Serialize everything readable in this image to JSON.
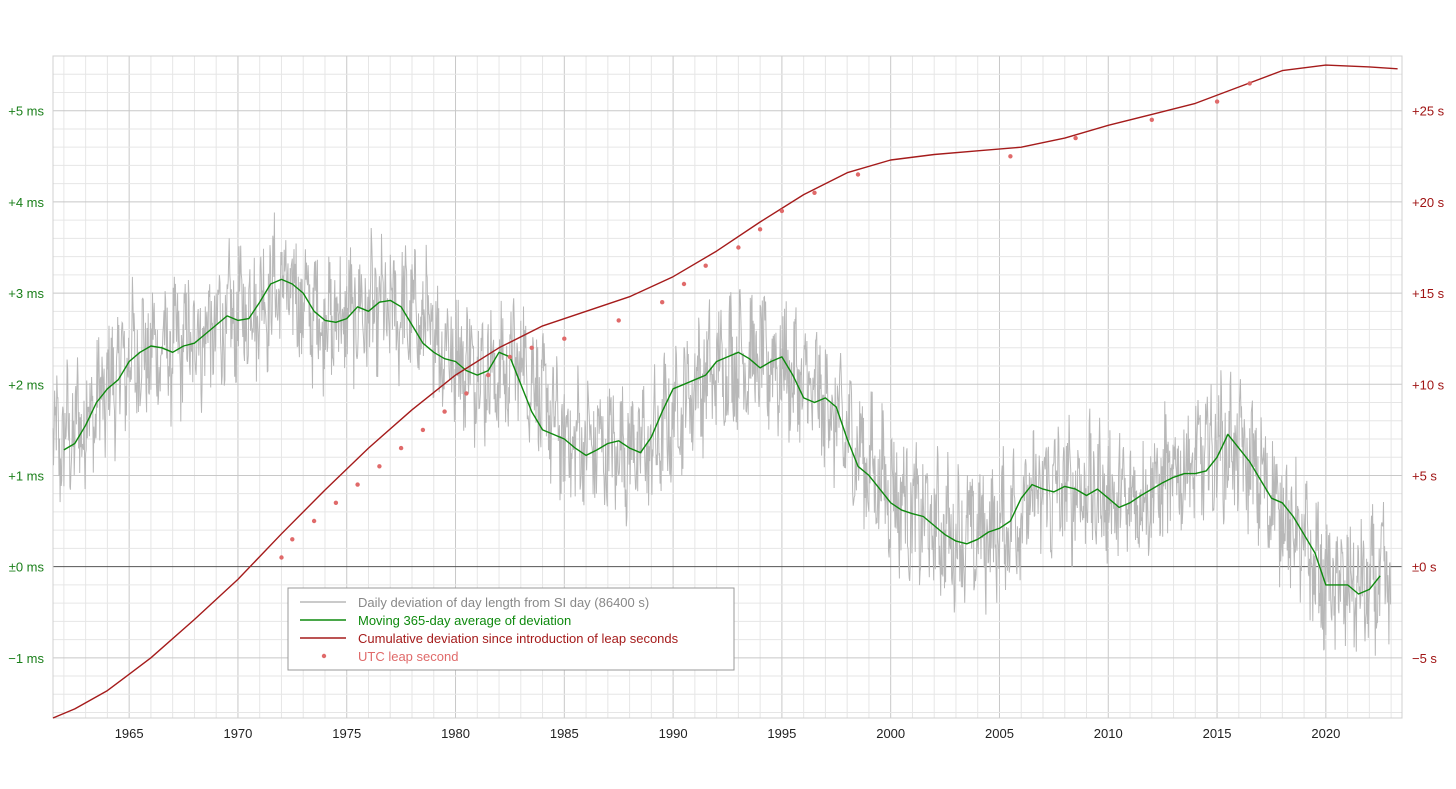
{
  "colors": {
    "daily": "#b8b8b8",
    "average": "#0e8a0e",
    "cumulative": "#a51b1b",
    "leap": "#e06a6a",
    "left_axis": "#1a7f1a",
    "right_axis": "#a01414",
    "grid_major": "#c8c8c8",
    "grid_minor": "#e6e6e6",
    "zero_line": "#555555"
  },
  "chart_data": {
    "type": "line",
    "title": "",
    "xlabel": "",
    "ylabel": "",
    "xlim": [
      1961.5,
      2023.5
    ],
    "ylim_left_ms": [
      -1.66,
      5.6
    ],
    "ylim_right_s": [
      -8.3,
      28
    ],
    "grid": true,
    "legend_position": "lower-left",
    "x_ticks": [
      1965,
      1970,
      1975,
      1980,
      1985,
      1990,
      1995,
      2000,
      2005,
      2010,
      2015,
      2020
    ],
    "x_tick_labels": [
      "1965",
      "1970",
      "1975",
      "1980",
      "1985",
      "1990",
      "1995",
      "2000",
      "2005",
      "2010",
      "2015",
      "2020"
    ],
    "left_ticks": [
      5,
      4,
      3,
      2,
      1,
      0,
      -1
    ],
    "left_tick_labels": [
      "+5 ms",
      "+4 ms",
      "+3 ms",
      "+2 ms",
      "+1 ms",
      "±0 ms",
      "−1 ms"
    ],
    "right_ticks": [
      25,
      20,
      15,
      10,
      5,
      0,
      -5
    ],
    "right_tick_labels": [
      "+25 s",
      "+20 s",
      "+15 s",
      "+10 s",
      "+5 s",
      "±0 s",
      "−5 s"
    ],
    "legend": [
      {
        "key": "daily",
        "label": "Daily deviation of day length from SI day (86400 s)",
        "symbol": "line"
      },
      {
        "key": "average",
        "label": "Moving 365-day average of deviation",
        "symbol": "line"
      },
      {
        "key": "cumulative",
        "label": "Cumulative deviation since introduction of leap seconds",
        "symbol": "line"
      },
      {
        "key": "leap",
        "label": "UTC leap second",
        "symbol": "dot"
      }
    ],
    "series": [
      {
        "name": "Moving 365-day average of deviation",
        "axis": "left",
        "unit": "ms",
        "x": [
          1962.0,
          1962.5,
          1963.0,
          1963.5,
          1964.0,
          1964.5,
          1965.0,
          1965.5,
          1966.0,
          1966.5,
          1967.0,
          1967.5,
          1968.0,
          1968.5,
          1969.0,
          1969.5,
          1970.0,
          1970.5,
          1971.0,
          1971.5,
          1972.0,
          1972.5,
          1973.0,
          1973.5,
          1974.0,
          1974.5,
          1975.0,
          1975.5,
          1976.0,
          1976.5,
          1977.0,
          1977.5,
          1978.0,
          1978.5,
          1979.0,
          1979.5,
          1980.0,
          1980.5,
          1981.0,
          1981.5,
          1982.0,
          1982.5,
          1983.0,
          1983.5,
          1984.0,
          1984.5,
          1985.0,
          1985.5,
          1986.0,
          1986.5,
          1987.0,
          1987.5,
          1988.0,
          1988.5,
          1989.0,
          1989.5,
          1990.0,
          1990.5,
          1991.0,
          1991.5,
          1992.0,
          1992.5,
          1993.0,
          1993.5,
          1994.0,
          1994.5,
          1995.0,
          1995.5,
          1996.0,
          1996.5,
          1997.0,
          1997.5,
          1998.0,
          1998.5,
          1999.0,
          1999.5,
          2000.0,
          2000.5,
          2001.0,
          2001.5,
          2002.0,
          2002.5,
          2003.0,
          2003.5,
          2004.0,
          2004.5,
          2005.0,
          2005.5,
          2006.0,
          2006.5,
          2007.0,
          2007.5,
          2008.0,
          2008.5,
          2009.0,
          2009.5,
          2010.0,
          2010.5,
          2011.0,
          2011.5,
          2012.0,
          2012.5,
          2013.0,
          2013.5,
          2014.0,
          2014.5,
          2015.0,
          2015.5,
          2016.0,
          2016.5,
          2017.0,
          2017.5,
          2018.0,
          2018.5,
          2019.0,
          2019.5,
          2020.0,
          2020.5,
          2021.0,
          2021.5,
          2022.0,
          2022.5
        ],
        "values": [
          1.28,
          1.35,
          1.55,
          1.8,
          1.95,
          2.05,
          2.25,
          2.35,
          2.42,
          2.4,
          2.35,
          2.42,
          2.45,
          2.55,
          2.65,
          2.75,
          2.7,
          2.72,
          2.9,
          3.1,
          3.15,
          3.1,
          3.0,
          2.8,
          2.7,
          2.68,
          2.72,
          2.85,
          2.8,
          2.9,
          2.92,
          2.85,
          2.65,
          2.45,
          2.35,
          2.28,
          2.25,
          2.15,
          2.1,
          2.15,
          2.35,
          2.3,
          2.0,
          1.7,
          1.5,
          1.45,
          1.4,
          1.3,
          1.22,
          1.28,
          1.35,
          1.38,
          1.3,
          1.25,
          1.42,
          1.7,
          1.95,
          2.0,
          2.05,
          2.1,
          2.25,
          2.3,
          2.35,
          2.28,
          2.18,
          2.25,
          2.3,
          2.1,
          1.85,
          1.8,
          1.85,
          1.75,
          1.4,
          1.1,
          1.0,
          0.85,
          0.7,
          0.62,
          0.58,
          0.55,
          0.45,
          0.35,
          0.28,
          0.25,
          0.3,
          0.38,
          0.42,
          0.5,
          0.75,
          0.9,
          0.85,
          0.82,
          0.88,
          0.85,
          0.78,
          0.85,
          0.75,
          0.65,
          0.7,
          0.78,
          0.85,
          0.92,
          0.98,
          1.02,
          1.02,
          1.05,
          1.2,
          1.45,
          1.3,
          1.15,
          0.95,
          0.75,
          0.7,
          0.55,
          0.35,
          0.15,
          -0.2,
          -0.2,
          -0.2,
          -0.3,
          -0.25,
          -0.1
        ]
      },
      {
        "name": "Cumulative deviation since introduction of leap seconds",
        "axis": "right",
        "unit": "s",
        "x": [
          1961.5,
          1962.5,
          1964.0,
          1966.0,
          1968.0,
          1970.0,
          1972.0,
          1974.0,
          1976.0,
          1978.0,
          1980.0,
          1982.0,
          1984.0,
          1986.0,
          1988.0,
          1990.0,
          1992.0,
          1994.0,
          1996.0,
          1998.0,
          2000.0,
          2002.0,
          2004.0,
          2006.0,
          2008.0,
          2010.0,
          2012.0,
          2014.0,
          2016.0,
          2018.0,
          2020.0,
          2022.0,
          2023.3
        ],
        "values": [
          -8.3,
          -7.8,
          -6.8,
          -5.0,
          -2.9,
          -0.7,
          1.8,
          4.2,
          6.5,
          8.6,
          10.5,
          12.0,
          13.2,
          14.0,
          14.8,
          15.9,
          17.3,
          18.9,
          20.4,
          21.6,
          22.3,
          22.6,
          22.8,
          23.0,
          23.5,
          24.2,
          24.8,
          25.4,
          26.3,
          27.2,
          27.5,
          27.4,
          27.3
        ]
      },
      {
        "name": "UTC leap second",
        "axis": "right",
        "unit": "s",
        "x": [
          1972.0,
          1972.5,
          1973.5,
          1974.5,
          1975.5,
          1976.5,
          1977.5,
          1978.5,
          1979.5,
          1980.5,
          1981.5,
          1982.5,
          1983.5,
          1985.0,
          1987.5,
          1989.5,
          1990.5,
          1991.5,
          1993.0,
          1994.0,
          1995.0,
          1996.5,
          1998.5,
          2005.5,
          2008.5,
          2012.0,
          2015.0,
          2016.5
        ],
        "values": [
          0.5,
          1.5,
          2.5,
          3.5,
          4.5,
          5.5,
          6.5,
          7.5,
          8.5,
          9.5,
          10.5,
          11.5,
          12.0,
          12.5,
          13.5,
          14.5,
          15.5,
          16.5,
          17.5,
          18.5,
          19.5,
          20.5,
          21.5,
          22.5,
          23.5,
          24.5,
          25.5,
          26.5
        ]
      },
      {
        "name": "Daily deviation of day length from SI day (86400 s)",
        "axis": "left",
        "unit": "ms",
        "note_values_sampled": false,
        "x": [
          1961.5,
          1963.0,
          1965.0,
          1967.0,
          1969.0,
          1971.0,
          1972.0,
          1974.0,
          1976.0,
          1978.0,
          1980.0,
          1982.0,
          1983.0,
          1985.0,
          1987.0,
          1989.0,
          1991.0,
          1993.0,
          1995.0,
          1997.0,
          1999.0,
          2001.0,
          2003.0,
          2005.0,
          2007.0,
          2009.0,
          2011.0,
          2013.0,
          2015.0,
          2016.0,
          2018.0,
          2020.0,
          2022.0,
          2023.0
        ],
        "values": [
          1.3,
          1.6,
          2.3,
          2.4,
          2.6,
          2.9,
          3.1,
          2.7,
          2.8,
          2.8,
          2.3,
          2.1,
          2.3,
          1.4,
          1.3,
          1.3,
          2.0,
          2.3,
          2.2,
          1.8,
          1.1,
          0.6,
          0.3,
          0.4,
          0.85,
          0.85,
          0.7,
          1.0,
          1.3,
          1.3,
          0.6,
          -0.2,
          -0.25,
          -0.1
        ],
        "amplitude_ms": 0.7
      }
    ]
  }
}
